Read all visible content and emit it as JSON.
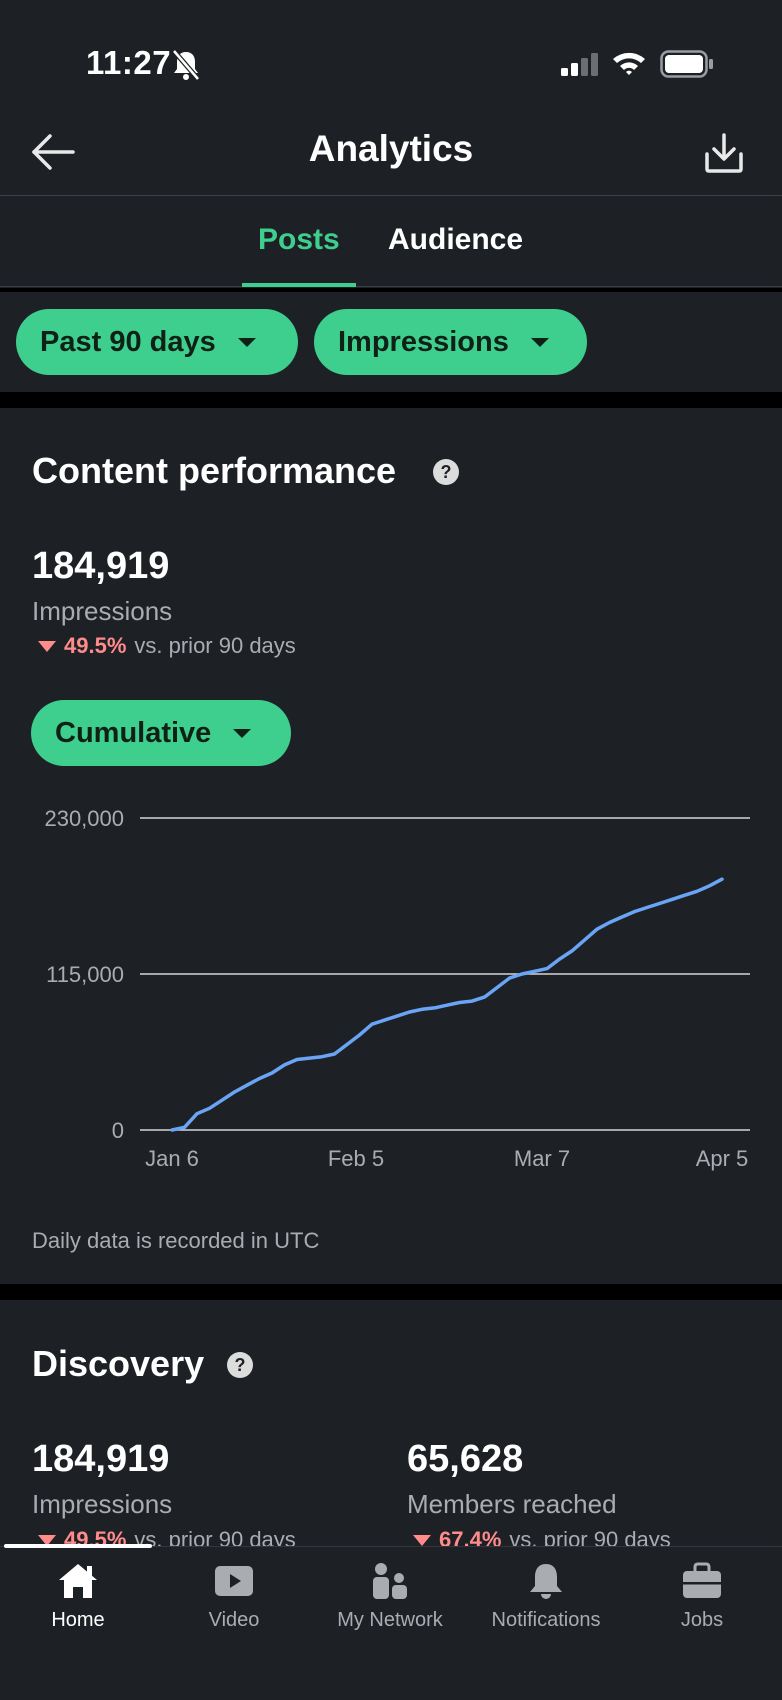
{
  "status_bar": {
    "time": "11:27"
  },
  "header": {
    "title": "Analytics"
  },
  "tabs": [
    {
      "label": "Posts",
      "active": true
    },
    {
      "label": "Audience",
      "active": false
    }
  ],
  "filters": {
    "range_label": "Past 90 days",
    "metric_label": "Impressions"
  },
  "content_performance": {
    "title": "Content performance",
    "total_value": "184,919",
    "total_label": "Impressions",
    "change_pct": "49.5%",
    "change_text": "vs. prior 90 days",
    "mode_label": "Cumulative",
    "note": "Daily data is recorded in UTC"
  },
  "chart_data": {
    "type": "line",
    "title": "",
    "xlabel": "",
    "ylabel": "",
    "x_tick_labels": [
      "Jan 6",
      "Feb 5",
      "Mar 7",
      "Apr 5"
    ],
    "y_tick_labels": [
      "230,000",
      "115,000",
      "0"
    ],
    "ylim": [
      0,
      230000
    ],
    "grid": true,
    "line_color": "#6aa5f5",
    "series": [
      {
        "x": [
          "Jan 6",
          "Jan 8",
          "Jan 10",
          "Jan 12",
          "Jan 14",
          "Jan 16",
          "Jan 18",
          "Jan 20",
          "Jan 22",
          "Jan 24",
          "Jan 26",
          "Jan 28",
          "Jan 30",
          "Feb 1",
          "Feb 3",
          "Feb 5",
          "Feb 7",
          "Feb 9",
          "Feb 11",
          "Feb 13",
          "Feb 15",
          "Feb 17",
          "Feb 19",
          "Feb 21",
          "Feb 23",
          "Feb 25",
          "Feb 27",
          "Mar 1",
          "Mar 3",
          "Mar 5",
          "Mar 7",
          "Mar 9",
          "Mar 11",
          "Mar 13",
          "Mar 15",
          "Mar 17",
          "Mar 19",
          "Mar 21",
          "Mar 23",
          "Mar 25",
          "Mar 27",
          "Mar 29",
          "Mar 31",
          "Apr 2",
          "Apr 4"
        ],
        "values": [
          0,
          2000,
          12000,
          16000,
          22000,
          28000,
          33000,
          38000,
          42000,
          48000,
          52000,
          53000,
          54000,
          56000,
          63000,
          70000,
          78000,
          81000,
          84000,
          87000,
          89000,
          90000,
          92000,
          94000,
          95000,
          98000,
          105000,
          112000,
          115000,
          117000,
          119000,
          126000,
          132000,
          140000,
          148000,
          153000,
          157000,
          161000,
          164000,
          167000,
          170000,
          173000,
          176000,
          180000,
          184919
        ]
      }
    ]
  },
  "discovery": {
    "title": "Discovery",
    "impressions_value": "184,919",
    "impressions_label": "Impressions",
    "impressions_change_pct": "49.5%",
    "impressions_change_text": "vs. prior 90 days",
    "members_value": "65,628",
    "members_label": "Members reached",
    "members_change_pct": "67.4%",
    "members_change_text": "vs. prior 90 days"
  },
  "bottom_nav": [
    {
      "label": "Home",
      "icon": "home-icon",
      "active": true
    },
    {
      "label": "Video",
      "icon": "video-icon",
      "active": false
    },
    {
      "label": "My Network",
      "icon": "my-network-icon",
      "active": false
    },
    {
      "label": "Notifications",
      "icon": "notifications-icon",
      "active": false
    },
    {
      "label": "Jobs",
      "icon": "jobs-icon",
      "active": false
    }
  ]
}
